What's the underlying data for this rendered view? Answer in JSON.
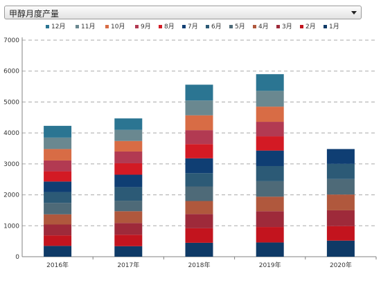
{
  "selector": {
    "value": "甲醇月度产量",
    "icon": "chevron-down-icon"
  },
  "chart_data": {
    "type": "bar",
    "stacked": true,
    "title": "",
    "xlabel": "",
    "ylabel": "",
    "categories": [
      "2016年",
      "2017年",
      "2018年",
      "2019年",
      "2020年"
    ],
    "ylim": [
      0,
      7000
    ],
    "yticks": [
      0,
      1000,
      2000,
      3000,
      4000,
      5000,
      6000,
      7000
    ],
    "grid": true,
    "legend_position": "top",
    "series": [
      {
        "name": "1月",
        "color": "#0f3a66",
        "values": [
          350,
          340,
          450,
          460,
          520
        ]
      },
      {
        "name": "2月",
        "color": "#c3141e",
        "values": [
          340,
          370,
          470,
          500,
          470
        ]
      },
      {
        "name": "3月",
        "color": "#9e2a3a",
        "values": [
          350,
          380,
          460,
          510,
          510
        ]
      },
      {
        "name": "4月",
        "color": "#b0583d",
        "values": [
          330,
          380,
          420,
          470,
          510
        ]
      },
      {
        "name": "5月",
        "color": "#4e6a78",
        "values": [
          370,
          340,
          470,
          500,
          500
        ]
      },
      {
        "name": "6月",
        "color": "#2c5a76",
        "values": [
          350,
          440,
          430,
          490,
          490
        ]
      },
      {
        "name": "7月",
        "color": "#0f3e73",
        "values": [
          340,
          400,
          480,
          500,
          480
        ]
      },
      {
        "name": "8月",
        "color": "#d31a24",
        "values": [
          330,
          370,
          460,
          460,
          0
        ]
      },
      {
        "name": "9月",
        "color": "#b23a52",
        "values": [
          350,
          380,
          450,
          470,
          0
        ]
      },
      {
        "name": "10月",
        "color": "#d86c45",
        "values": [
          370,
          340,
          480,
          490,
          0
        ]
      },
      {
        "name": "11月",
        "color": "#6a8890",
        "values": [
          370,
          360,
          480,
          510,
          0
        ]
      },
      {
        "name": "12月",
        "color": "#2b7592",
        "values": [
          380,
          370,
          510,
          540,
          0
        ]
      }
    ]
  }
}
